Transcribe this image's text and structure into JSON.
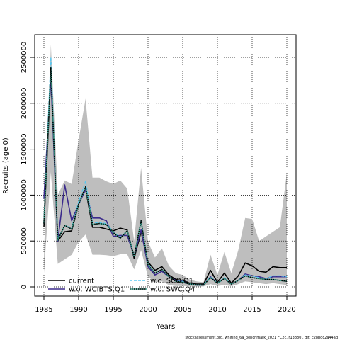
{
  "chart_data": {
    "type": "line",
    "title": "",
    "xlabel": "Years",
    "ylabel": "Recruits (age 0)",
    "xlim": [
      1984,
      2021
    ],
    "ylim": [
      -100000,
      2750000
    ],
    "x_ticks": [
      1985,
      1990,
      1995,
      2000,
      2005,
      2010,
      2015,
      2020
    ],
    "x_tick_labels": [
      "1985",
      "1990",
      "1995",
      "2000",
      "2005",
      "2010",
      "2015",
      "2020"
    ],
    "y_ticks": [
      0,
      500000,
      1000000,
      1500000,
      2000000,
      2500000
    ],
    "y_tick_labels": [
      "0",
      "500000",
      "1000000",
      "1500000",
      "2000000",
      "2500000"
    ],
    "grid": true,
    "legend_position": "bottom-left",
    "x": [
      1985,
      1986,
      1987,
      1988,
      1989,
      1990,
      1991,
      1992,
      1993,
      1994,
      1995,
      1996,
      1997,
      1998,
      1999,
      2000,
      2001,
      2002,
      2003,
      2004,
      2005,
      2006,
      2007,
      2008,
      2009,
      2010,
      2011,
      2012,
      2013,
      2014,
      2015,
      2016,
      2017,
      2018,
      2019,
      2020
    ],
    "ci_band": {
      "upper": [
        320000,
        2640000,
        1000000,
        1160000,
        1120000,
        1600000,
        2050000,
        1190000,
        1190000,
        1150000,
        1120000,
        1160000,
        1070000,
        500000,
        1300000,
        490000,
        320000,
        420000,
        230000,
        150000,
        130000,
        80000,
        60000,
        50000,
        350000,
        130000,
        380000,
        150000,
        400000,
        750000,
        740000,
        500000,
        550000,
        600000,
        650000,
        1240000
      ],
      "lower": [
        150000,
        1250000,
        250000,
        300000,
        350000,
        490000,
        570000,
        350000,
        350000,
        345000,
        335000,
        355000,
        355000,
        190000,
        400000,
        110000,
        50000,
        60000,
        20000,
        10000,
        10000,
        5000,
        5000,
        5000,
        30000,
        10000,
        20000,
        8000,
        30000,
        60000,
        50000,
        40000,
        30000,
        40000,
        30000,
        20000
      ]
    },
    "series": [
      {
        "name": "current",
        "color": "#000000",
        "style": "solid",
        "width": 1.6,
        "values": [
          650000,
          2330000,
          500000,
          600000,
          610000,
          900000,
          1070000,
          650000,
          650000,
          630000,
          610000,
          640000,
          620000,
          310000,
          600000,
          270000,
          180000,
          220000,
          130000,
          80000,
          70000,
          40000,
          30000,
          30000,
          180000,
          50000,
          150000,
          40000,
          120000,
          260000,
          230000,
          170000,
          160000,
          220000,
          210000,
          210000
        ]
      },
      {
        "name": "w.o. WCIBTS.Q1",
        "color": "#3b2a8c",
        "style": "solid",
        "width": 1.6,
        "values": [
          960000,
          2280000,
          500000,
          1110000,
          720000,
          900000,
          1060000,
          750000,
          750000,
          720000,
          550000,
          560000,
          560000,
          340000,
          620000,
          220000,
          130000,
          170000,
          110000,
          70000,
          60000,
          30000,
          20000,
          20000,
          110000,
          40000,
          90000,
          30000,
          70000,
          140000,
          120000,
          110000,
          90000,
          110000,
          110000,
          110000
        ]
      },
      {
        "name": "w.o. SCO.Q1",
        "color": "#5bc8f0",
        "style": "dashed",
        "width": 1.4,
        "values": [
          700000,
          2500000,
          520000,
          670000,
          640000,
          930000,
          1150000,
          700000,
          700000,
          690000,
          600000,
          540000,
          610000,
          330000,
          720000,
          250000,
          150000,
          190000,
          110000,
          60000,
          60000,
          30000,
          20000,
          20000,
          110000,
          40000,
          100000,
          30000,
          70000,
          130000,
          120000,
          100000,
          90000,
          120000,
          120000,
          110000
        ]
      },
      {
        "name": "w.o. SWC.Q4",
        "color": "#3a9e8c",
        "style": "dotted",
        "width": 1.6,
        "values": [
          690000,
          2390000,
          510000,
          670000,
          630000,
          900000,
          1090000,
          680000,
          690000,
          680000,
          590000,
          530000,
          610000,
          330000,
          720000,
          240000,
          150000,
          190000,
          110000,
          60000,
          50000,
          30000,
          20000,
          20000,
          100000,
          40000,
          90000,
          30000,
          70000,
          120000,
          100000,
          90000,
          80000,
          80000,
          70000,
          60000
        ]
      }
    ]
  },
  "footer": "stockassessment.org, whiting_6a_benchmark_2021 FC2c, r13880 , git: c28bdc2a44ad"
}
